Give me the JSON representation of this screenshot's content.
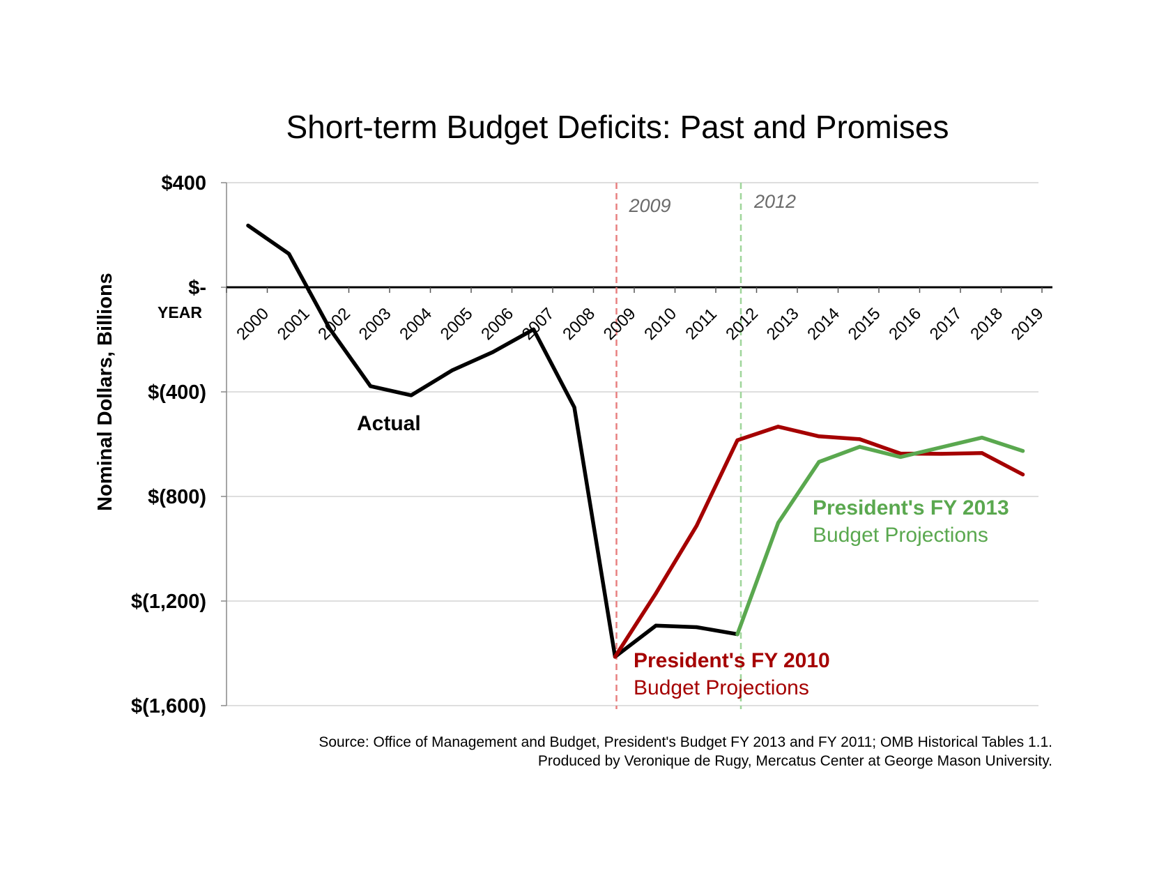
{
  "chart_data": {
    "type": "line",
    "title": "Short-term Budget Deficits: Past and Promises",
    "ylabel": "Nominal Dollars, Billions",
    "xlabel": "YEAR",
    "x": [
      "2000",
      "2001",
      "2002",
      "2003",
      "2004",
      "2005",
      "2006",
      "2007",
      "2008",
      "2009",
      "2010",
      "2011",
      "2012",
      "2013",
      "2014",
      "2015",
      "2016",
      "2017",
      "2018",
      "2019"
    ],
    "ylim": [
      -1600,
      400
    ],
    "yticks": [
      400,
      0,
      -400,
      -800,
      -1200,
      -1600
    ],
    "ytick_labels": [
      "$400",
      "$-",
      "$(400)",
      "$(800)",
      "$(1,200)",
      "$(1,600)"
    ],
    "grid": "horizontal",
    "series": [
      {
        "name": "Actual",
        "color": "#000000",
        "values": [
          236,
          128,
          -158,
          -378,
          -413,
          -318,
          -248,
          -161,
          -459,
          -1413,
          -1294,
          -1300,
          -1327,
          null,
          null,
          null,
          null,
          null,
          null,
          null
        ]
      },
      {
        "name": "President's FY 2010 Budget Projections",
        "color": "#a50000",
        "values": [
          null,
          null,
          null,
          null,
          null,
          null,
          null,
          null,
          null,
          -1413,
          -1171,
          -912,
          -585,
          -533,
          -570,
          -581,
          -636,
          -637,
          -634,
          -716
        ]
      },
      {
        "name": "President's FY 2013 Budget Projections",
        "color": "#5aa84f",
        "values": [
          null,
          null,
          null,
          null,
          null,
          null,
          null,
          null,
          null,
          null,
          null,
          null,
          -1327,
          -901,
          -668,
          -610,
          -649,
          -612,
          -575,
          -626
        ]
      }
    ],
    "markers": [
      {
        "x": "2009",
        "label": "2009",
        "color": "#e88080"
      },
      {
        "x": "2012",
        "label": "2012",
        "color": "#9fd69a"
      }
    ],
    "labels": {
      "actual": "Actual",
      "fy2010_line1": "President's FY 2010",
      "fy2010_line2": "Budget Projections",
      "fy2013_line1": "President's FY 2013",
      "fy2013_line2": "Budget Projections"
    },
    "source": {
      "line1": "Source: Office of Management and Budget, President's Budget FY 2013 and FY 2011; OMB Historical Tables 1.1.",
      "line2": "Produced by Veronique de Rugy, Mercatus Center at George Mason University."
    }
  }
}
